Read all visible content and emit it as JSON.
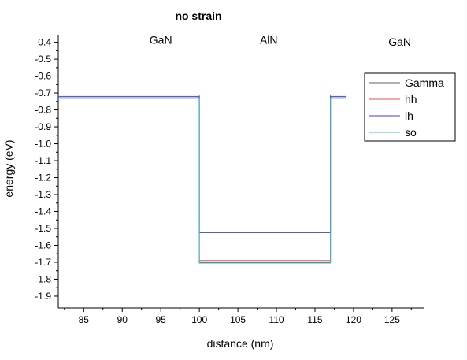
{
  "chart_data": {
    "type": "line",
    "title": "no strain",
    "xlabel": "distance (nm)",
    "ylabel": "energy (eV)",
    "xlim": [
      81.7,
      129.1
    ],
    "ylim": [
      -1.97,
      -0.36
    ],
    "x_ticks": [
      85,
      90,
      95,
      100,
      105,
      110,
      115,
      120,
      125
    ],
    "x_tick_labels": [
      "85",
      "90",
      "95",
      "100",
      "105",
      "110",
      "115",
      "120",
      "125"
    ],
    "y_ticks": [
      -0.4,
      -0.5,
      -0.6,
      -0.7,
      -0.8,
      -0.9,
      -1.0,
      -1.1,
      -1.2,
      -1.3,
      -1.4,
      -1.5,
      -1.6,
      -1.7,
      -1.8,
      -1.9
    ],
    "y_tick_labels": [
      "-0.4",
      "-0.5",
      "-0.6",
      "-0.7",
      "-0.8",
      "-0.9",
      "-1.0",
      "-1.1",
      "-1.2",
      "-1.3",
      "-1.4",
      "-1.5",
      "-1.6",
      "-1.7",
      "-1.8",
      "-1.9"
    ],
    "region_labels": [
      {
        "text": "GaN",
        "x": 95.0,
        "y": -0.41
      },
      {
        "text": "AlN",
        "x": 109.0,
        "y": -0.41
      },
      {
        "text": "GaN",
        "x": 126.0,
        "y": -0.42
      }
    ],
    "legend_position": "top-right",
    "grid": false,
    "series": [
      {
        "name": "Gamma",
        "color": "#606060",
        "x": [
          81.7,
          100,
          100,
          117,
          117,
          119
        ],
        "y": [
          -0.722,
          -0.722,
          -1.7,
          -1.7,
          -0.722,
          -0.722
        ]
      },
      {
        "name": "hh",
        "color": "#e05050",
        "x": [
          81.7,
          100,
          100,
          117,
          117,
          119
        ],
        "y": [
          -0.712,
          -0.712,
          -1.69,
          -1.69,
          -0.712,
          -0.712
        ]
      },
      {
        "name": "lh",
        "color": "#4040d0",
        "x": [
          81.7,
          100,
          100,
          117,
          117,
          119
        ],
        "y": [
          -0.722,
          -0.722,
          -1.525,
          -1.525,
          -0.722,
          -0.722
        ]
      },
      {
        "name": "so",
        "color": "#40b8c8",
        "x": [
          81.7,
          100,
          100,
          117,
          117,
          119
        ],
        "y": [
          -0.732,
          -0.732,
          -1.705,
          -1.705,
          -0.732,
          -0.732
        ]
      }
    ]
  }
}
